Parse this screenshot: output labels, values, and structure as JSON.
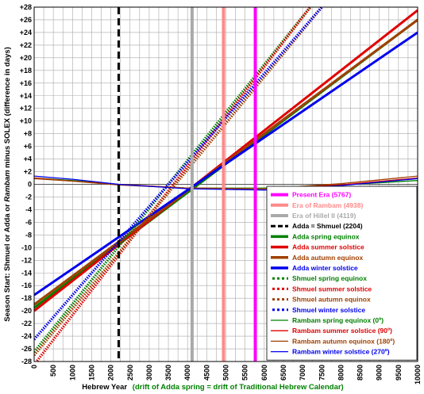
{
  "chart_data": {
    "type": "line",
    "xlabel": "Hebrew Year",
    "xlabel_note": "(drift of Adda spring = drift of Traditional Hebrew Calendar)",
    "ylabel": "Season Start:  Shmuel or Adda or Rambam  minus SOLEX (difference in days)",
    "xlim": [
      0,
      10000
    ],
    "ylim": [
      -28,
      28
    ],
    "x_ticks": [
      "0",
      "250",
      "500",
      "750",
      "1000",
      "1250",
      "1500",
      "1750",
      "2000",
      "2250",
      "2500",
      "2750",
      "3000",
      "3250",
      "3500",
      "3750",
      "4000",
      "4250",
      "4500",
      "4750",
      "5000",
      "5250",
      "5500",
      "5750",
      "6000",
      "6250",
      "6500",
      "6750",
      "7000",
      "7250",
      "7500",
      "7750",
      "8000",
      "8250",
      "8500",
      "8750",
      "9000",
      "9250",
      "9500",
      "9750",
      "10000"
    ],
    "x_tick_labels": [
      "0",
      "500",
      "1000",
      "1500",
      "2000",
      "2500",
      "3000",
      "3500",
      "4000",
      "4500",
      "5000",
      "5500",
      "6000",
      "6500",
      "7000",
      "7500",
      "8000",
      "8500",
      "9000",
      "9500",
      "10000"
    ],
    "y_tick_labels": [
      "+28",
      "+26",
      "+24",
      "+22",
      "+20",
      "+18",
      "+16",
      "+14",
      "+12",
      "+10",
      "+8",
      "+6",
      "+4",
      "+2",
      "0",
      "-2",
      "-4",
      "-6",
      "-8",
      "-10",
      "-12",
      "-14",
      "-16",
      "-18",
      "-20",
      "-22",
      "-24",
      "-26",
      "-28"
    ],
    "grid": true,
    "legend_position": "lower-right",
    "vlines": [
      {
        "name": "Present Era (5767)",
        "x": 5767,
        "color": "#ff00ff",
        "dash": "solid",
        "width": 4
      },
      {
        "name": "Era of Rambam (4938)",
        "x": 4938,
        "color": "#ff8a8a",
        "dash": "solid",
        "width": 4
      },
      {
        "name": "Era of Hillel II (4119)",
        "x": 4119,
        "color": "#aaaaaa",
        "dash": "solid",
        "width": 4
      },
      {
        "name": "Adda = Shmuel (2204)",
        "x": 2204,
        "color": "#000000",
        "dash": "dashed",
        "width": 3
      }
    ],
    "series": [
      {
        "name": "Adda spring equinox",
        "color": "#008000",
        "style": "thick",
        "x": [
          0,
          10000
        ],
        "y": [
          -19.5,
          26
        ]
      },
      {
        "name": "Adda summer solstice",
        "color": "#e00000",
        "style": "thick",
        "x": [
          0,
          10000
        ],
        "y": [
          -20,
          27.5
        ]
      },
      {
        "name": "Adda autumn equinox",
        "color": "#a04000",
        "style": "thick",
        "x": [
          0,
          10000
        ],
        "y": [
          -19,
          26
        ]
      },
      {
        "name": "Adda winter solstice",
        "color": "#0000ee",
        "style": "thick",
        "x": [
          0,
          10000
        ],
        "y": [
          -17.5,
          24
        ]
      },
      {
        "name": "Shmuel spring equinox",
        "color": "#008000",
        "style": "dotted",
        "x": [
          0,
          7200
        ],
        "y": [
          -26.5,
          28
        ]
      },
      {
        "name": "Shmuel summer solstice",
        "color": "#e00000",
        "style": "dotted",
        "x": [
          0,
          7200
        ],
        "y": [
          -28.5,
          28
        ]
      },
      {
        "name": "Shmuel autumn equinox",
        "color": "#a04000",
        "style": "dotted",
        "x": [
          0,
          7500
        ],
        "y": [
          -27,
          28
        ]
      },
      {
        "name": "Shmuel winter solstice",
        "color": "#0000ee",
        "style": "dotted",
        "x": [
          0,
          7500
        ],
        "y": [
          -24.5,
          28
        ]
      },
      {
        "name": "Rambam spring equinox (0º)",
        "color": "#008000",
        "style": "thin",
        "x": [
          0,
          1000,
          2200,
          4000,
          6000,
          8000,
          10000
        ],
        "y": [
          1.0,
          0.6,
          0.0,
          -0.6,
          -0.6,
          -0.1,
          0.6
        ]
      },
      {
        "name": "Rambam summer solstice (90º)",
        "color": "#e00000",
        "style": "thin",
        "x": [
          0,
          1000,
          2200,
          4000,
          6000,
          8000,
          10000
        ],
        "y": [
          1.0,
          0.5,
          0.0,
          -0.6,
          -0.7,
          -0.1,
          1.0
        ]
      },
      {
        "name": "Rambam autumn equinox (180º)",
        "color": "#a04000",
        "style": "thin",
        "x": [
          0,
          1000,
          2200,
          4000,
          6000,
          8000,
          10000
        ],
        "y": [
          0.9,
          0.5,
          -0.1,
          -0.6,
          -0.7,
          0.1,
          1.3
        ]
      },
      {
        "name": "Rambam winter solstice (270º)",
        "color": "#0000ee",
        "style": "thin",
        "x": [
          0,
          1000,
          2200,
          4000,
          6000,
          8000,
          10000
        ],
        "y": [
          1.3,
          0.8,
          0.0,
          -0.7,
          -0.9,
          -0.2,
          0.9
        ]
      }
    ],
    "legend_entries": [
      {
        "label": "Present Era (5767)",
        "color": "#ff00ff",
        "style": "vthick"
      },
      {
        "label": "Era of Rambam (4938)",
        "color": "#ff8a8a",
        "style": "vthick"
      },
      {
        "label": "Era of Hillel II (4119)",
        "color": "#aaaaaa",
        "style": "vthick"
      },
      {
        "label": "Adda = Shmuel (2204)",
        "color": "#000000",
        "style": "dashed"
      },
      {
        "label": "Adda spring equinox",
        "color": "#008000",
        "style": "thick"
      },
      {
        "label": "Adda summer solstice",
        "color": "#e00000",
        "style": "thick"
      },
      {
        "label": "Adda autumn equinox",
        "color": "#a04000",
        "style": "thick"
      },
      {
        "label": "Adda winter solstice",
        "color": "#0000ee",
        "style": "thick"
      },
      {
        "label": "Shmuel spring equinox",
        "color": "#008000",
        "style": "dotted"
      },
      {
        "label": "Shmuel summer solstice",
        "color": "#e00000",
        "style": "dotted"
      },
      {
        "label": "Shmuel autumn equinox",
        "color": "#a04000",
        "style": "dotted"
      },
      {
        "label": "Shmuel winter solstice",
        "color": "#0000ee",
        "style": "dotted"
      },
      {
        "label": "Rambam spring equinox (0º)",
        "color": "#008000",
        "style": "thin"
      },
      {
        "label": "Rambam summer solstice (90º)",
        "color": "#e00000",
        "style": "thin"
      },
      {
        "label": "Rambam autumn equinox (180º)",
        "color": "#a04000",
        "style": "thin"
      },
      {
        "label": "Rambam winter solstice (270º)",
        "color": "#0000ee",
        "style": "thin"
      }
    ]
  }
}
